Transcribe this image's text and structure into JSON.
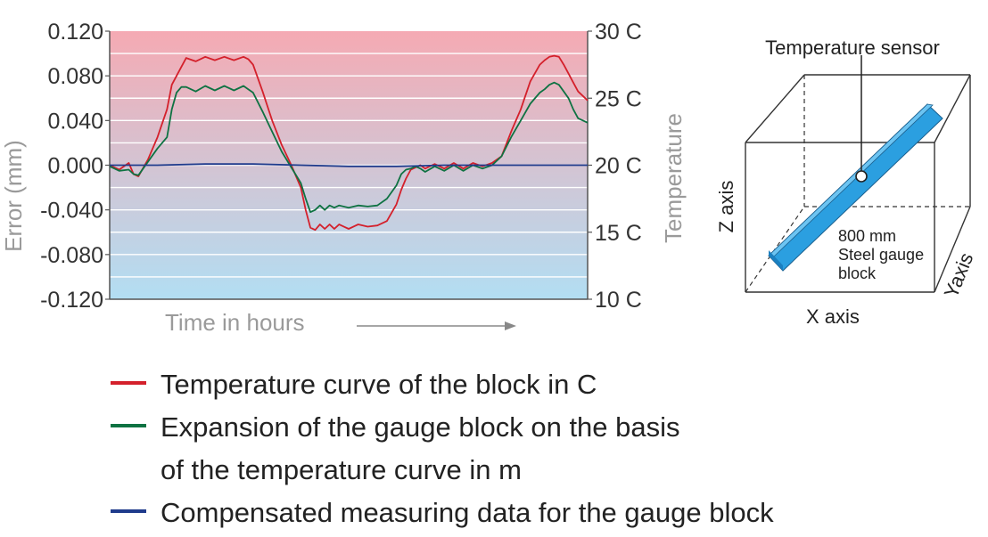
{
  "chart_data": {
    "type": "line",
    "xlabel": "Time in hours",
    "ylabel_left": "Error (mm)",
    "ylabel_right": "Temperature",
    "ylim_left": [
      -0.12,
      0.12
    ],
    "yticks_left": [
      "0.120",
      "0.080",
      "0.040",
      "0.000",
      "-0.040",
      "-0.080",
      "-0.120"
    ],
    "ylim_right": [
      10,
      30
    ],
    "yticks_right": [
      "30 C",
      "25 C",
      "20 C",
      "15 C",
      "10 C"
    ],
    "x_range": [
      0,
      100
    ],
    "grid": true,
    "background_top_color": "#f5aab3",
    "background_bottom_color": "#b2def3",
    "series": [
      {
        "name": "Temperature curve of the block in C",
        "color": "#d4202b",
        "axis": "left",
        "x": [
          0,
          2,
          4,
          5,
          6,
          8,
          10,
          12,
          13,
          14,
          15,
          16,
          18,
          20,
          22,
          24,
          26,
          28,
          29,
          30,
          32,
          34,
          36,
          38,
          40,
          41,
          42,
          43,
          44,
          45,
          46,
          47,
          48,
          50,
          52,
          54,
          56,
          58,
          60,
          61,
          62,
          63,
          64,
          65,
          66,
          68,
          70,
          72,
          74,
          76,
          78,
          80,
          82,
          84,
          86,
          88,
          90,
          91,
          92,
          93,
          94,
          95,
          96,
          97,
          98,
          100
        ],
        "y": [
          0.0,
          -0.004,
          0.002,
          -0.008,
          -0.01,
          0.005,
          0.025,
          0.05,
          0.072,
          0.08,
          0.088,
          0.096,
          0.093,
          0.097,
          0.094,
          0.097,
          0.094,
          0.097,
          0.095,
          0.09,
          0.066,
          0.04,
          0.018,
          0.0,
          -0.02,
          -0.04,
          -0.056,
          -0.058,
          -0.053,
          -0.057,
          -0.053,
          -0.057,
          -0.053,
          -0.057,
          -0.053,
          -0.055,
          -0.054,
          -0.05,
          -0.035,
          -0.022,
          -0.012,
          -0.004,
          -0.002,
          0.0,
          -0.003,
          0.001,
          -0.003,
          0.002,
          -0.003,
          0.002,
          -0.001,
          0.002,
          0.008,
          0.03,
          0.05,
          0.075,
          0.09,
          0.094,
          0.097,
          0.098,
          0.097,
          0.09,
          0.082,
          0.074,
          0.066,
          0.058
        ]
      },
      {
        "name": "Expansion of the gauge block on the basis of the temperature curve in m",
        "color": "#0e7242",
        "axis": "left",
        "x": [
          0,
          2,
          4,
          5,
          6,
          8,
          10,
          12,
          13,
          14,
          15,
          16,
          18,
          20,
          22,
          24,
          26,
          28,
          29,
          30,
          32,
          34,
          36,
          38,
          40,
          41,
          42,
          43,
          44,
          45,
          46,
          47,
          48,
          50,
          52,
          54,
          56,
          58,
          60,
          61,
          62,
          63,
          64,
          65,
          66,
          68,
          70,
          72,
          74,
          76,
          78,
          80,
          82,
          84,
          86,
          88,
          90,
          91,
          92,
          93,
          94,
          95,
          96,
          97,
          98,
          100
        ],
        "y": [
          -0.001,
          -0.005,
          -0.004,
          -0.008,
          -0.009,
          0.003,
          0.015,
          0.025,
          0.05,
          0.065,
          0.07,
          0.07,
          0.066,
          0.071,
          0.067,
          0.071,
          0.067,
          0.071,
          0.068,
          0.065,
          0.048,
          0.03,
          0.012,
          -0.002,
          -0.016,
          -0.03,
          -0.042,
          -0.04,
          -0.036,
          -0.04,
          -0.036,
          -0.038,
          -0.036,
          -0.038,
          -0.036,
          -0.037,
          -0.036,
          -0.03,
          -0.018,
          -0.008,
          -0.004,
          -0.003,
          -0.001,
          -0.003,
          -0.006,
          -0.001,
          -0.005,
          0.0,
          -0.005,
          0.0,
          -0.003,
          0.0,
          0.008,
          0.025,
          0.04,
          0.055,
          0.065,
          0.068,
          0.072,
          0.074,
          0.072,
          0.066,
          0.06,
          0.05,
          0.042,
          0.038
        ]
      },
      {
        "name": "Compensated measuring data for the gauge block",
        "color": "#1f3b8c",
        "axis": "left",
        "x": [
          0,
          10,
          20,
          30,
          40,
          50,
          60,
          70,
          80,
          90,
          100
        ],
        "y": [
          0.0,
          0.0,
          0.001,
          0.001,
          0.0,
          -0.001,
          -0.001,
          0.0,
          0.0,
          0.0,
          0.0
        ]
      }
    ]
  },
  "legend": [
    {
      "color": "#d4202b",
      "lines": [
        "Temperature curve of the block in C"
      ]
    },
    {
      "color": "#0e7242",
      "lines": [
        "Expansion of the gauge block on the basis",
        "of the temperature curve in m"
      ]
    },
    {
      "color": "#1f3b8c",
      "lines": [
        "Compensated measuring data for the gauge block"
      ]
    }
  ],
  "diagram": {
    "sensor_label": "Temperature sensor",
    "block_label_lines": [
      "800 mm",
      "Steel gauge",
      "block"
    ],
    "x_axis_label": "X axis",
    "y_axis_label": "Yaxis",
    "z_axis_label": "Z axis",
    "block_color": "#2b9fe0"
  }
}
